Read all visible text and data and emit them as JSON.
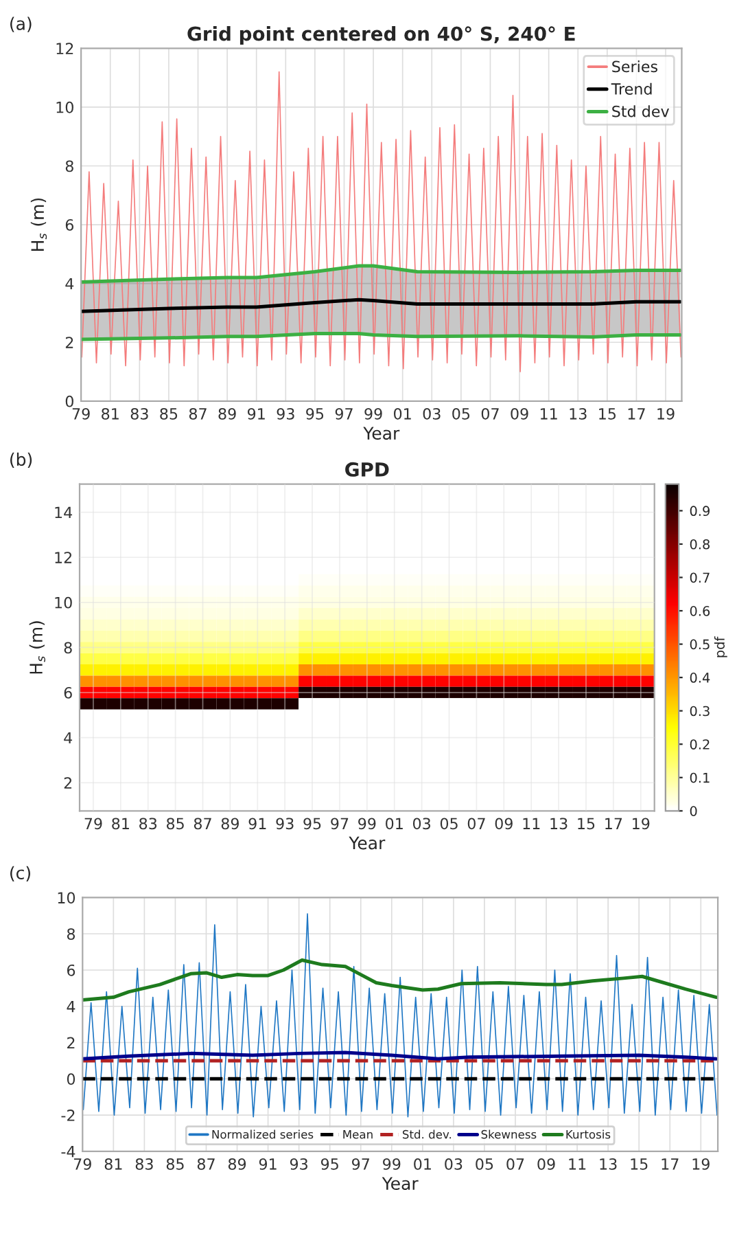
{
  "chart_data": [
    {
      "type": "line",
      "title": "Grid point centered on 40° S, 240° E",
      "xlabel": "Year",
      "ylabel": "H$_{s}$ (m)",
      "annotations": [
        "(a)"
      ],
      "xlim": [
        1979,
        2020.1
      ],
      "xticks": [
        {
          "value": 1979,
          "label": "79"
        },
        {
          "value": 1981,
          "label": "81"
        },
        {
          "value": 1983,
          "label": "83"
        },
        {
          "value": 1985,
          "label": "85"
        },
        {
          "value": 1987,
          "label": "87"
        },
        {
          "value": 1989,
          "label": "89"
        },
        {
          "value": 1991,
          "label": "91"
        },
        {
          "value": 1993,
          "label": "93"
        },
        {
          "value": 1995,
          "label": "95"
        },
        {
          "value": 1997,
          "label": "97"
        },
        {
          "value": 1999,
          "label": "99"
        },
        {
          "value": 2001,
          "label": "01"
        },
        {
          "value": 2003,
          "label": "03"
        },
        {
          "value": 2005,
          "label": "05"
        },
        {
          "value": 2007,
          "label": "07"
        },
        {
          "value": 2009,
          "label": "09"
        },
        {
          "value": 2011,
          "label": "11"
        },
        {
          "value": 2013,
          "label": "13"
        },
        {
          "value": 2015,
          "label": "15"
        },
        {
          "value": 2017,
          "label": "17"
        },
        {
          "value": 2019,
          "label": "19"
        }
      ],
      "ylim": [
        0,
        12
      ],
      "yticks": [
        0,
        2,
        4,
        6,
        8,
        10,
        12
      ],
      "grid": true,
      "legend": "top right",
      "series": [
        {
          "name": "Series",
          "color": "#f47c7c",
          "x": [
            1979.05,
            1979.55,
            1980.05,
            1980.55,
            1981.05,
            1981.55,
            1982.05,
            1982.55,
            1983.05,
            1983.55,
            1984.05,
            1984.55,
            1985.05,
            1985.55,
            1986.05,
            1986.55,
            1987.05,
            1987.55,
            1988.05,
            1988.55,
            1989.05,
            1989.55,
            1990.05,
            1990.55,
            1991.05,
            1991.55,
            1992.05,
            1992.55,
            1993.05,
            1993.55,
            1994.05,
            1994.55,
            1995.05,
            1995.55,
            1996.05,
            1996.55,
            1997.05,
            1997.55,
            1998.05,
            1998.55,
            1999.05,
            1999.55,
            2000.05,
            2000.55,
            2001.05,
            2001.55,
            2002.05,
            2002.55,
            2003.05,
            2003.55,
            2004.05,
            2004.55,
            2005.05,
            2005.55,
            2006.05,
            2006.55,
            2007.05,
            2007.55,
            2008.05,
            2008.55,
            2009.05,
            2009.55,
            2010.05,
            2010.55,
            2011.05,
            2011.55,
            2012.05,
            2012.55,
            2013.05,
            2013.55,
            2014.05,
            2014.55,
            2015.05,
            2015.55,
            2016.05,
            2016.55,
            2017.05,
            2017.55,
            2018.05,
            2018.55,
            2019.05,
            2019.55,
            2020.05
          ],
          "values": [
            1.5,
            7.8,
            1.3,
            7.4,
            1.6,
            6.8,
            1.2,
            8.2,
            1.4,
            8.0,
            1.5,
            9.5,
            1.3,
            9.6,
            1.2,
            8.6,
            1.6,
            8.3,
            1.4,
            9.0,
            1.3,
            7.5,
            1.5,
            8.5,
            1.2,
            8.2,
            1.4,
            11.2,
            1.6,
            7.8,
            1.3,
            8.6,
            1.5,
            9.0,
            1.2,
            9.0,
            1.4,
            9.8,
            1.3,
            10.1,
            1.6,
            8.8,
            1.2,
            8.9,
            1.1,
            9.2,
            1.5,
            8.3,
            1.4,
            9.3,
            1.3,
            9.4,
            1.6,
            8.4,
            1.2,
            8.6,
            1.5,
            9.0,
            1.4,
            10.4,
            1.0,
            9.0,
            1.3,
            9.1,
            1.5,
            8.7,
            1.2,
            8.2,
            1.4,
            8.0,
            1.6,
            9.0,
            1.3,
            8.4,
            1.5,
            8.6,
            1.2,
            8.8,
            1.4,
            8.8,
            1.3,
            7.5,
            1.5
          ]
        },
        {
          "name": "Trend",
          "color": "#000000",
          "x": [
            1979,
            1985,
            1989,
            1991,
            1995,
            1998,
            1999,
            2002,
            2009,
            2014,
            2017,
            2020
          ],
          "values": [
            3.05,
            3.15,
            3.2,
            3.2,
            3.35,
            3.45,
            3.42,
            3.3,
            3.3,
            3.3,
            3.38,
            3.38
          ],
          "lower": [
            2.1,
            2.15,
            2.2,
            2.2,
            2.3,
            2.3,
            2.25,
            2.2,
            2.22,
            2.18,
            2.25,
            2.25
          ],
          "upper": [
            4.05,
            4.15,
            4.2,
            4.2,
            4.4,
            4.6,
            4.6,
            4.4,
            4.38,
            4.4,
            4.45,
            4.45
          ]
        },
        {
          "name": "Std dev",
          "color": "#3cb043",
          "x": [
            1979,
            1985,
            1989,
            1991,
            1995,
            1998,
            1999,
            2002,
            2009,
            2014,
            2017,
            2020
          ],
          "values": [
            4.05,
            4.15,
            4.2,
            4.2,
            4.4,
            4.6,
            4.6,
            4.4,
            4.38,
            4.4,
            4.45,
            4.45
          ]
        },
        {
          "color": "#3cb043",
          "x": [
            1979,
            1985,
            1989,
            1991,
            1995,
            1998,
            1999,
            2002,
            2009,
            2014,
            2017,
            2020
          ],
          "values": [
            2.1,
            2.15,
            2.2,
            2.2,
            2.3,
            2.3,
            2.25,
            2.2,
            2.22,
            2.18,
            2.25,
            2.25
          ]
        }
      ]
    },
    {
      "type": "heatmap",
      "title": "GPD",
      "xlabel": "Year",
      "ylabel": "H$_{s}$ (m)",
      "clabel": "pdf",
      "annotations": [
        "(b)"
      ],
      "grid": true,
      "clim": [
        0,
        0.98
      ],
      "cticks": [
        0,
        0.1,
        0.2,
        0.3,
        0.4,
        0.5,
        0.6,
        0.7,
        0.8,
        0.9
      ],
      "categories": [
        "79",
        "81",
        "83",
        "85",
        "87",
        "89",
        "91",
        "93",
        "95",
        "97",
        "99",
        "01",
        "03",
        "05",
        "07",
        "09",
        "11",
        "13",
        "15",
        "17",
        "19"
      ],
      "y_categories": [
        null,
        null,
        "14",
        null,
        null,
        null,
        "12",
        null,
        null,
        null,
        "10",
        null,
        null,
        null,
        "8",
        null,
        null,
        null,
        "6",
        null,
        null,
        null,
        "4",
        null,
        null,
        null,
        "2",
        null,
        null
      ],
      "cells": [
        [
          0,
          0,
          0,
          0,
          0,
          0,
          0,
          0,
          0,
          0,
          0,
          0,
          0,
          0,
          0,
          0,
          0,
          0,
          0,
          0,
          0
        ],
        [
          0,
          0,
          0,
          0,
          0,
          0,
          0,
          0,
          0,
          0,
          0,
          0,
          0,
          0,
          0,
          0,
          0,
          0,
          0,
          0,
          0
        ],
        [
          0,
          0,
          0,
          0,
          0,
          0,
          0,
          0,
          0,
          0,
          0,
          0,
          0,
          0,
          0,
          0,
          0,
          0,
          0,
          0,
          0
        ],
        [
          0,
          0,
          0,
          0,
          0,
          0,
          0,
          0,
          0,
          0,
          0,
          0,
          0,
          0,
          0,
          0,
          0,
          0,
          0,
          0,
          0
        ],
        [
          0,
          0,
          0,
          0,
          0,
          0,
          0,
          0,
          0,
          0,
          0,
          0,
          0,
          0,
          0,
          0,
          0,
          0,
          0,
          0,
          0
        ],
        [
          0,
          0,
          0,
          0,
          0,
          0,
          0,
          0,
          0,
          0,
          0,
          0,
          0,
          0,
          0,
          0,
          0,
          0,
          0,
          0,
          0
        ],
        [
          0,
          0,
          0,
          0,
          0,
          0,
          0,
          0,
          0,
          0,
          0,
          0,
          0,
          0,
          0,
          0,
          0,
          0,
          0,
          0,
          0
        ],
        [
          0,
          0,
          0,
          0,
          0,
          0,
          0,
          0,
          0,
          0,
          0,
          0,
          0,
          0,
          0,
          0,
          0,
          0,
          0,
          0,
          0
        ],
        [
          0,
          0,
          0,
          0,
          0,
          0,
          0,
          0,
          0.01,
          0.01,
          0.01,
          0.01,
          0.01,
          0.01,
          0.01,
          0.01,
          0.01,
          0.01,
          0.01,
          0.01,
          0.01
        ],
        [
          0.01,
          0.01,
          0.01,
          0.01,
          0.01,
          0.01,
          0.01,
          0.01,
          0.02,
          0.02,
          0.02,
          0.02,
          0.02,
          0.02,
          0.02,
          0.02,
          0.02,
          0.02,
          0.02,
          0.02,
          0.02
        ],
        [
          0.02,
          0.02,
          0.02,
          0.02,
          0.02,
          0.02,
          0.02,
          0.02,
          0.03,
          0.03,
          0.03,
          0.03,
          0.03,
          0.03,
          0.03,
          0.03,
          0.03,
          0.03,
          0.03,
          0.03,
          0.03
        ],
        [
          0.03,
          0.03,
          0.03,
          0.03,
          0.03,
          0.03,
          0.03,
          0.03,
          0.05,
          0.05,
          0.05,
          0.05,
          0.05,
          0.05,
          0.05,
          0.05,
          0.05,
          0.05,
          0.05,
          0.05,
          0.05
        ],
        [
          0.05,
          0.05,
          0.05,
          0.05,
          0.05,
          0.05,
          0.05,
          0.05,
          0.08,
          0.08,
          0.08,
          0.08,
          0.08,
          0.08,
          0.08,
          0.08,
          0.08,
          0.08,
          0.08,
          0.08,
          0.08
        ],
        [
          0.08,
          0.08,
          0.08,
          0.08,
          0.08,
          0.08,
          0.08,
          0.08,
          0.12,
          0.12,
          0.12,
          0.12,
          0.12,
          0.12,
          0.12,
          0.12,
          0.12,
          0.12,
          0.12,
          0.12,
          0.12
        ],
        [
          0.12,
          0.12,
          0.12,
          0.12,
          0.12,
          0.12,
          0.12,
          0.12,
          0.18,
          0.18,
          0.18,
          0.18,
          0.18,
          0.18,
          0.18,
          0.18,
          0.18,
          0.18,
          0.18,
          0.18,
          0.18
        ],
        [
          0.18,
          0.18,
          0.18,
          0.18,
          0.18,
          0.18,
          0.18,
          0.18,
          0.27,
          0.27,
          0.27,
          0.27,
          0.27,
          0.27,
          0.27,
          0.27,
          0.27,
          0.27,
          0.27,
          0.27,
          0.27
        ],
        [
          0.27,
          0.27,
          0.27,
          0.27,
          0.27,
          0.27,
          0.27,
          0.27,
          0.41,
          0.41,
          0.41,
          0.41,
          0.41,
          0.41,
          0.41,
          0.41,
          0.41,
          0.41,
          0.41,
          0.41,
          0.41
        ],
        [
          0.41,
          0.41,
          0.41,
          0.41,
          0.41,
          0.41,
          0.41,
          0.41,
          0.62,
          0.62,
          0.62,
          0.62,
          0.62,
          0.62,
          0.62,
          0.62,
          0.62,
          0.62,
          0.62,
          0.62,
          0.62
        ],
        [
          0.62,
          0.62,
          0.62,
          0.62,
          0.62,
          0.62,
          0.62,
          0.62,
          0.95,
          0.95,
          0.95,
          0.95,
          0.95,
          0.95,
          0.95,
          0.95,
          0.95,
          0.95,
          0.95,
          0.95,
          0.95
        ],
        [
          0.95,
          0.95,
          0.95,
          0.95,
          0.95,
          0.95,
          0.95,
          0.95,
          0,
          0,
          0,
          0,
          0,
          0,
          0,
          0,
          0,
          0,
          0,
          0,
          0
        ],
        [
          0,
          0,
          0,
          0,
          0,
          0,
          0,
          0,
          0,
          0,
          0,
          0,
          0,
          0,
          0,
          0,
          0,
          0,
          0,
          0,
          0
        ],
        [
          0,
          0,
          0,
          0,
          0,
          0,
          0,
          0,
          0,
          0,
          0,
          0,
          0,
          0,
          0,
          0,
          0,
          0,
          0,
          0,
          0
        ],
        [
          0,
          0,
          0,
          0,
          0,
          0,
          0,
          0,
          0,
          0,
          0,
          0,
          0,
          0,
          0,
          0,
          0,
          0,
          0,
          0,
          0
        ],
        [
          0,
          0,
          0,
          0,
          0,
          0,
          0,
          0,
          0,
          0,
          0,
          0,
          0,
          0,
          0,
          0,
          0,
          0,
          0,
          0,
          0
        ],
        [
          0,
          0,
          0,
          0,
          0,
          0,
          0,
          0,
          0,
          0,
          0,
          0,
          0,
          0,
          0,
          0,
          0,
          0,
          0,
          0,
          0
        ],
        [
          0,
          0,
          0,
          0,
          0,
          0,
          0,
          0,
          0,
          0,
          0,
          0,
          0,
          0,
          0,
          0,
          0,
          0,
          0,
          0,
          0
        ],
        [
          0,
          0,
          0,
          0,
          0,
          0,
          0,
          0,
          0,
          0,
          0,
          0,
          0,
          0,
          0,
          0,
          0,
          0,
          0,
          0,
          0
        ],
        [
          0,
          0,
          0,
          0,
          0,
          0,
          0,
          0,
          0,
          0,
          0,
          0,
          0,
          0,
          0,
          0,
          0,
          0,
          0,
          0,
          0
        ],
        [
          0,
          0,
          0,
          0,
          0,
          0,
          0,
          0,
          0,
          0,
          0,
          0,
          0,
          0,
          0,
          0,
          0,
          0,
          0,
          0,
          0
        ]
      ]
    },
    {
      "type": "line",
      "xlabel": "Year",
      "annotations": [
        "(c)"
      ],
      "xlim": [
        1979,
        2020.1
      ],
      "xticks": [
        {
          "value": 1979,
          "label": "79"
        },
        {
          "value": 1981,
          "label": "81"
        },
        {
          "value": 1983,
          "label": "83"
        },
        {
          "value": 1985,
          "label": "85"
        },
        {
          "value": 1987,
          "label": "87"
        },
        {
          "value": 1989,
          "label": "89"
        },
        {
          "value": 1991,
          "label": "91"
        },
        {
          "value": 1993,
          "label": "93"
        },
        {
          "value": 1995,
          "label": "95"
        },
        {
          "value": 1997,
          "label": "97"
        },
        {
          "value": 1999,
          "label": "99"
        },
        {
          "value": 2001,
          "label": "01"
        },
        {
          "value": 2003,
          "label": "03"
        },
        {
          "value": 2005,
          "label": "05"
        },
        {
          "value": 2007,
          "label": "07"
        },
        {
          "value": 2009,
          "label": "09"
        },
        {
          "value": 2011,
          "label": "11"
        },
        {
          "value": 2013,
          "label": "13"
        },
        {
          "value": 2015,
          "label": "15"
        },
        {
          "value": 2017,
          "label": "17"
        },
        {
          "value": 2019,
          "label": "19"
        }
      ],
      "ylim": [
        -4,
        10
      ],
      "yticks": [
        -4,
        -2,
        0,
        2,
        4,
        6,
        8,
        10
      ],
      "grid": true,
      "legend": "bottom",
      "series": [
        {
          "name": "Normalized series",
          "color": "#1f77c4",
          "x": [
            1979.05,
            1979.55,
            1980.05,
            1980.55,
            1981.05,
            1981.55,
            1982.05,
            1982.55,
            1983.05,
            1983.55,
            1984.05,
            1984.55,
            1985.05,
            1985.55,
            1986.05,
            1986.55,
            1987.05,
            1987.55,
            1988.05,
            1988.55,
            1989.05,
            1989.55,
            1990.05,
            1990.55,
            1991.05,
            1991.55,
            1992.05,
            1992.55,
            1993.05,
            1993.55,
            1994.05,
            1994.55,
            1995.05,
            1995.55,
            1996.05,
            1996.55,
            1997.05,
            1997.55,
            1998.05,
            1998.55,
            1999.05,
            1999.55,
            2000.05,
            2000.55,
            2001.05,
            2001.55,
            2002.05,
            2002.55,
            2003.05,
            2003.55,
            2004.05,
            2004.55,
            2005.05,
            2005.55,
            2006.05,
            2006.55,
            2007.05,
            2007.55,
            2008.05,
            2008.55,
            2009.05,
            2009.55,
            2010.05,
            2010.55,
            2011.05,
            2011.55,
            2012.05,
            2012.55,
            2013.05,
            2013.55,
            2014.05,
            2014.55,
            2015.05,
            2015.55,
            2016.05,
            2016.55,
            2017.05,
            2017.55,
            2018.05,
            2018.55,
            2019.05,
            2019.55,
            2020.05
          ],
          "values": [
            -1.7,
            4.2,
            -1.8,
            4.8,
            -2.0,
            4.0,
            -1.6,
            6.1,
            -1.9,
            4.5,
            -1.7,
            4.9,
            -1.8,
            6.3,
            -1.6,
            6.4,
            -2.0,
            8.5,
            -1.7,
            4.8,
            -1.9,
            5.2,
            -2.1,
            4.0,
            -1.6,
            4.3,
            -1.8,
            6.0,
            -1.7,
            9.1,
            -1.9,
            5.0,
            -1.6,
            4.8,
            -2.0,
            6.2,
            -1.8,
            5.0,
            -1.7,
            4.7,
            -1.9,
            5.6,
            -2.1,
            4.5,
            -1.8,
            4.7,
            -1.6,
            4.5,
            -1.9,
            6.0,
            -1.7,
            6.2,
            -1.8,
            4.8,
            -2.0,
            5.1,
            -1.6,
            4.6,
            -1.9,
            4.8,
            -1.7,
            6.0,
            -1.8,
            5.8,
            -2.0,
            4.5,
            -1.7,
            4.3,
            -1.6,
            6.8,
            -1.9,
            4.1,
            -1.8,
            6.7,
            -2.0,
            4.5,
            -1.7,
            4.9,
            -1.8,
            4.6,
            -1.9,
            4.1,
            -2.0
          ]
        },
        {
          "name": "Mean",
          "color": "#000000",
          "line_style": "dashed",
          "x": [
            1979,
            2020
          ],
          "values": [
            0,
            0
          ]
        },
        {
          "name": "Std. dev.",
          "color": "#b22222",
          "line_style": "dashed",
          "x": [
            1979,
            2020
          ],
          "values": [
            1,
            1
          ]
        },
        {
          "name": "Skewness",
          "color": "#00008b",
          "x": [
            1979,
            1982,
            1986,
            1990,
            1993,
            1996,
            1999,
            2002,
            2004,
            2010,
            2015,
            2018,
            2020
          ],
          "values": [
            1.1,
            1.25,
            1.4,
            1.3,
            1.4,
            1.45,
            1.3,
            1.1,
            1.2,
            1.25,
            1.3,
            1.2,
            1.1
          ]
        },
        {
          "name": "Kurtosis",
          "color": "#1e7b1e",
          "x": [
            1979,
            1981,
            1982,
            1984,
            1986,
            1987,
            1988,
            1989,
            1990,
            1991,
            1992,
            1993.2,
            1994.5,
            1996,
            1998,
            1999,
            2001,
            2002,
            2003.5,
            2006,
            2009,
            2010,
            2012,
            2014,
            2015.2,
            2016,
            2018,
            2020
          ],
          "values": [
            4.35,
            4.5,
            4.8,
            5.2,
            5.8,
            5.85,
            5.6,
            5.75,
            5.7,
            5.7,
            6.0,
            6.55,
            6.3,
            6.2,
            5.3,
            5.15,
            4.9,
            4.95,
            5.25,
            5.3,
            5.2,
            5.2,
            5.4,
            5.55,
            5.65,
            5.45,
            4.95,
            4.5
          ]
        }
      ]
    }
  ]
}
